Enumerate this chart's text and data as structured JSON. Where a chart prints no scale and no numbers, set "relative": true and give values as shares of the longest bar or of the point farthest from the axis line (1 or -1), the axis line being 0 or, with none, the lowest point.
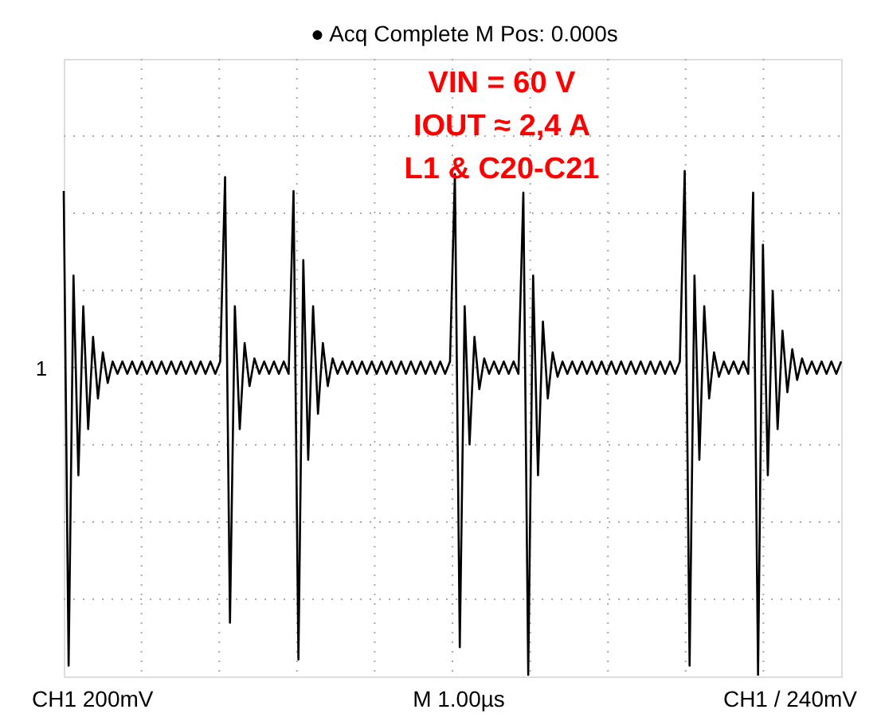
{
  "chart_data": {
    "type": "line",
    "relative": true,
    "grid": true,
    "marker": "none",
    "line_style": "solid",
    "categories": [
      null,
      null,
      null,
      null,
      null,
      null,
      null,
      null,
      null,
      null,
      null,
      null,
      null,
      null,
      null,
      null,
      null,
      null,
      null,
      null,
      null,
      null,
      null,
      null,
      null,
      null,
      null,
      null,
      null,
      null,
      null,
      null,
      null,
      null,
      null,
      null,
      null,
      null,
      null,
      null,
      null,
      null,
      null,
      null,
      null,
      null,
      null,
      null,
      null,
      null,
      null,
      null,
      null,
      null,
      null,
      null,
      null,
      null,
      null,
      null,
      null,
      null,
      null,
      null,
      null,
      null,
      null,
      null,
      null,
      null,
      null,
      null,
      null,
      null,
      null,
      null,
      null,
      null,
      null,
      null,
      null,
      null,
      null,
      null,
      null,
      null,
      null,
      null,
      null,
      null,
      null,
      null,
      null,
      null,
      null,
      null,
      null,
      null,
      null,
      null,
      null,
      null,
      null,
      null,
      null,
      null,
      null,
      null,
      null,
      null,
      null,
      null,
      null,
      null,
      null,
      null,
      null,
      null,
      null,
      null,
      null,
      null,
      null,
      null,
      null,
      null,
      null,
      null,
      null,
      null,
      null,
      null,
      null,
      null,
      null,
      null,
      null,
      null,
      null,
      null,
      null,
      null,
      null,
      null,
      null,
      null,
      null,
      null,
      null,
      null,
      null,
      null,
      null,
      null,
      null,
      null,
      null,
      null,
      null,
      null
    ],
    "series": [
      {
        "color": "#000000",
        "values": [
          0.575,
          -0.97,
          0.3,
          -0.35,
          0.2,
          -0.2,
          0.1,
          -0.1,
          0.05,
          -0.05,
          0.02,
          -0.02,
          0.02,
          -0.02,
          0.02,
          -0.02,
          0.02,
          -0.02,
          0.02,
          -0.02,
          0.02,
          -0.02,
          0.02,
          -0.02,
          0.02,
          -0.02,
          0.02,
          -0.02,
          0.02,
          -0.02,
          0.02,
          -0.02,
          0.02,
          0.62,
          -0.83,
          0.2,
          -0.2,
          0.08,
          -0.06,
          0.03,
          -0.02,
          0.02,
          -0.02,
          0.02,
          -0.02,
          0.02,
          -0.02,
          0.575,
          -0.95,
          0.35,
          -0.3,
          0.2,
          -0.15,
          0.08,
          -0.06,
          0.03,
          -0.02,
          0.02,
          -0.02,
          0.02,
          -0.02,
          0.02,
          -0.02,
          0.02,
          -0.02,
          0.02,
          -0.02,
          0.02,
          -0.02,
          0.02,
          -0.02,
          0.02,
          -0.02,
          0.02,
          -0.02,
          0.02,
          -0.02,
          0.02,
          -0.02,
          0.02,
          0.63,
          -0.91,
          0.2,
          -0.25,
          0.1,
          -0.07,
          0.03,
          -0.02,
          0.02,
          -0.02,
          0.02,
          -0.02,
          0.02,
          -0.02,
          0.57,
          -1,
          0.3,
          -0.35,
          0.15,
          -0.1,
          0.05,
          -0.03,
          0.02,
          -0.02,
          0.02,
          -0.02,
          0.02,
          -0.02,
          0.02,
          -0.02,
          0.02,
          -0.02,
          0.02,
          -0.02,
          0.02,
          -0.02,
          0.02,
          -0.02,
          0.02,
          -0.02,
          0.02,
          -0.02,
          0.02,
          -0.02,
          0.02,
          -0.02,
          0.02,
          0.64,
          -0.97,
          0.3,
          -0.3,
          0.2,
          -0.1,
          0.05,
          -0.03,
          0.02,
          -0.02,
          0.02,
          -0.02,
          0.02,
          -0.02,
          0.57,
          -1,
          0.4,
          -0.35,
          0.25,
          -0.2,
          0.12,
          -0.08,
          0.06,
          -0.04,
          0.03,
          -0.02,
          0.02,
          -0.02,
          0.02,
          -0.02,
          0.02,
          -0.02,
          0.02
        ]
      }
    ],
    "annotations": [
      "● Acq Complete   M Pos: 0.000s",
      "VIN = 60 V",
      "IOUT ≈ 2,4 A",
      "L1 & C20-C21",
      "1",
      "CH1  200mV",
      "M 1.00µs",
      "CH1 / 240mV"
    ]
  }
}
